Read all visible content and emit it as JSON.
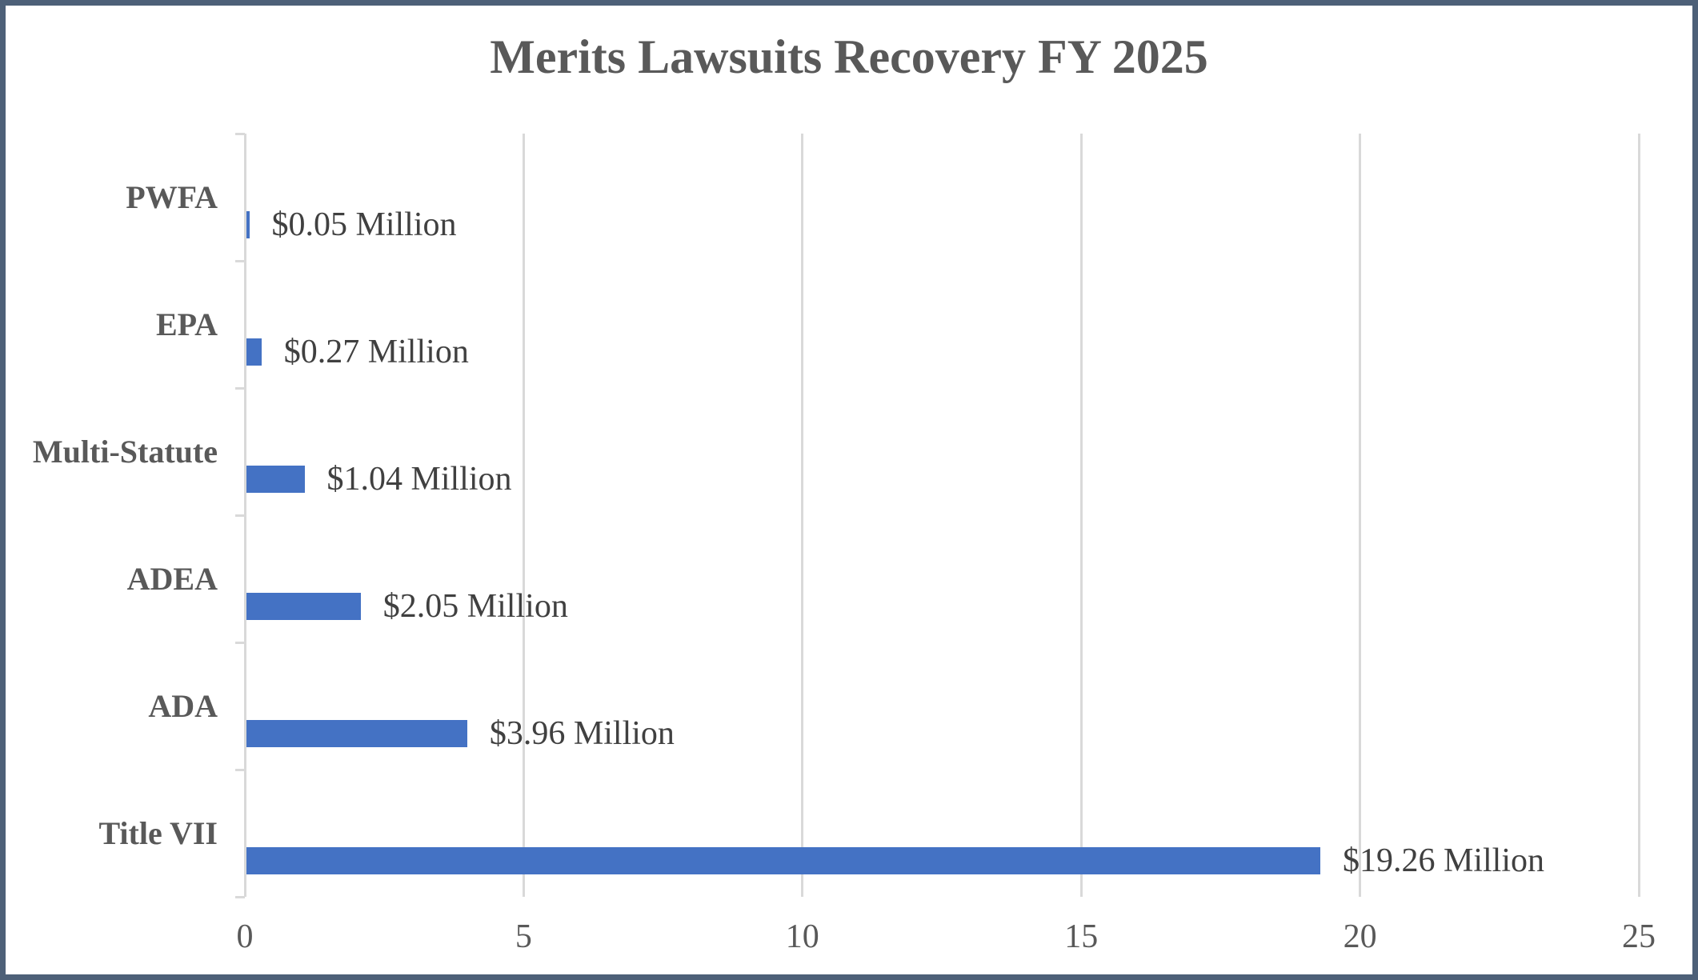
{
  "title": "Merits Lawsuits Recovery FY 2025",
  "chart_data": {
    "type": "bar",
    "orientation": "horizontal",
    "title": "Merits Lawsuits Recovery FY 2025",
    "categories": [
      "PWFA",
      "EPA",
      "Multi-Statute",
      "ADEA",
      "ADA",
      "Title VII"
    ],
    "values": [
      0.05,
      0.27,
      1.04,
      2.05,
      3.96,
      19.26
    ],
    "data_labels": [
      "$0.05 Million",
      "$0.27 Million",
      "$1.04 Million",
      "$2.05 Million",
      "$3.96 Million",
      "$19.26 Million"
    ],
    "xlabel": "",
    "ylabel": "",
    "xlim": [
      0,
      25
    ],
    "x_ticks": [
      "0",
      "5",
      "10",
      "15",
      "20",
      "25"
    ],
    "x_tick_values": [
      0,
      5,
      10,
      15,
      20,
      25
    ],
    "grid": true,
    "legend": false
  },
  "colors": {
    "bar": "#4472c4",
    "gridline": "#d9d9d9",
    "border": "#4d6078",
    "heading_text": "#595959",
    "data_label_text": "#404040"
  }
}
